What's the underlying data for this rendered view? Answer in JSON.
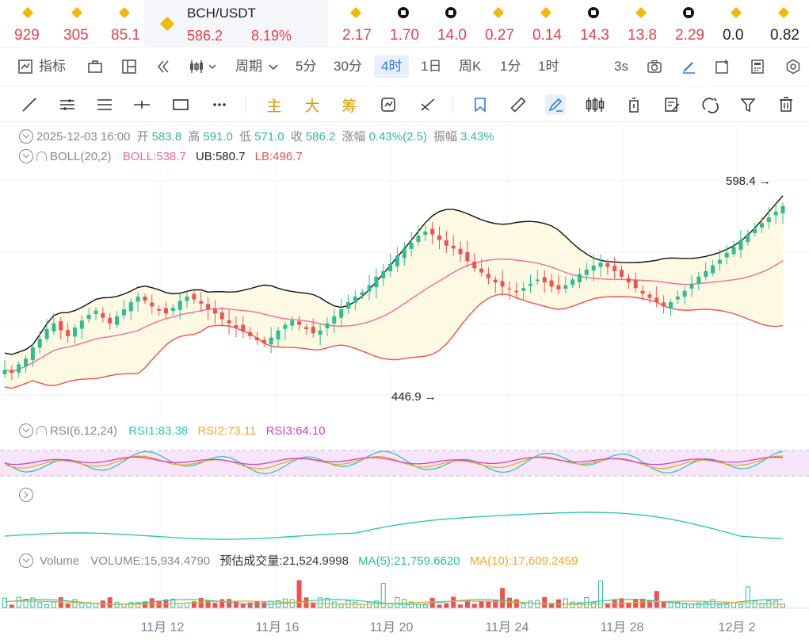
{
  "ticker": {
    "items": [
      {
        "icon": "binance-icon",
        "price": "929",
        "neutral": false
      },
      {
        "icon": "binance-icon",
        "price": "305",
        "neutral": false
      },
      {
        "icon": "binance-icon",
        "price": "85.1",
        "neutral": false
      },
      {
        "icon": "binance-icon",
        "symbol": "BCH/USDT",
        "price": "586.2",
        "change": "8.19%",
        "active": true
      },
      {
        "icon": "binance-icon",
        "price": "2.17",
        "neutral": false
      },
      {
        "icon": "okx-icon",
        "price": "1.70",
        "neutral": false
      },
      {
        "icon": "okx-icon",
        "price": "14.0",
        "neutral": false
      },
      {
        "icon": "binance-icon",
        "price": "0.27",
        "neutral": false
      },
      {
        "icon": "binance-icon",
        "price": "0.14",
        "neutral": false
      },
      {
        "icon": "okx-icon",
        "price": "14.3",
        "neutral": false
      },
      {
        "icon": "binance-icon",
        "price": "13.8",
        "neutral": false
      },
      {
        "icon": "okx-icon",
        "price": "2.29",
        "neutral": false
      },
      {
        "icon": "binance-icon",
        "price": "0.0",
        "neutral": true
      },
      {
        "icon": "binance-icon",
        "price": "0.82",
        "neutral": true
      }
    ]
  },
  "period_bar": {
    "indicators_label": "指标",
    "period_label": "周期",
    "periods": [
      "5分",
      "30分",
      "4时",
      "1日",
      "周K",
      "1分",
      "1时"
    ],
    "selected_period": "4时",
    "refresh": "3s"
  },
  "draw_toolbar": {
    "text_tools": [
      "主",
      "大",
      "筹"
    ]
  },
  "ohlc": {
    "datetime": "2025-12-03 16:00",
    "open_label": "开",
    "open": "583.8",
    "high_label": "高",
    "high": "591.0",
    "low_label": "低",
    "low": "571.0",
    "close_label": "收",
    "close": "586.2",
    "change_label": "涨幅",
    "change": "0.43%(2.5)",
    "amplitude_label": "振幅",
    "amplitude": "3.43%"
  },
  "boll": {
    "name": "BOLL(20,2)",
    "boll": "BOLL:538.7",
    "ub": "UB:580.7",
    "lb": "LB:496.7"
  },
  "rsi": {
    "name": "RSI(6,12,24)",
    "rsi1": "RSI1:83.38",
    "rsi2": "RSI2:73.11",
    "rsi3": "RSI3:64.10"
  },
  "volume": {
    "name": "Volume",
    "volume": "VOLUME:15,934.4790",
    "estimated": "预估成交量:21,524.9998",
    "ma5": "MA(5):21,759.6620",
    "ma10": "MA(10):17,609.2459"
  },
  "colors": {
    "up": "#2dbd96",
    "down": "#f0514f",
    "boll_mid": "#f26b9c",
    "ub_lb": "#111111",
    "lb_line": "#f0514f",
    "band_fill": "#fdf9e3",
    "rsi1": "#2dc9b4",
    "rsi2": "#f5a623",
    "rsi3": "#d63fc0",
    "accent": "#2f7be5"
  },
  "chart_data": {
    "type": "candlestick",
    "symbol": "BCH/USDT",
    "interval": "4时",
    "x_tick_labels": [
      "11月 12",
      "11月 16",
      "11月 20",
      "11月 24",
      "11月 28",
      "12月 2"
    ],
    "price_markers": {
      "high": 598.4,
      "low": 446.9
    },
    "last_candle": {
      "open": 583.8,
      "high": 591.0,
      "low": 571.0,
      "close": 586.2
    },
    "price_range_estimate": [
      440,
      605
    ],
    "boll_last": {
      "mid": 538.7,
      "ub": 580.7,
      "lb": 496.7
    },
    "close_series_estimate": [
      470,
      468,
      474,
      478,
      486,
      492,
      499,
      503,
      498,
      494,
      500,
      505,
      509,
      512,
      507,
      503,
      508,
      513,
      518,
      522,
      519,
      515,
      512,
      510,
      514,
      519,
      522,
      520,
      517,
      513,
      510,
      506,
      503,
      500,
      497,
      494,
      491,
      489,
      493,
      498,
      502,
      505,
      502,
      499,
      496,
      498,
      503,
      508,
      513,
      518,
      522,
      525,
      530,
      536,
      540,
      545,
      551,
      556,
      560,
      565,
      568,
      566,
      562,
      558,
      556,
      552,
      547,
      542,
      539,
      535,
      532,
      529,
      527,
      525,
      528,
      531,
      534,
      532,
      529,
      527,
      530,
      534,
      538,
      541,
      544,
      546,
      543,
      540,
      536,
      532,
      528,
      524,
      521,
      518,
      515,
      518,
      522,
      526,
      531,
      536,
      540,
      544,
      548,
      553,
      557,
      562,
      566,
      570,
      574,
      578,
      582,
      586
    ],
    "rsi_levels": {
      "upper": 70,
      "lower": 30
    },
    "volume_last": 15934.479,
    "volume_ma5": 21759.662,
    "volume_ma10": 17609.2459
  }
}
